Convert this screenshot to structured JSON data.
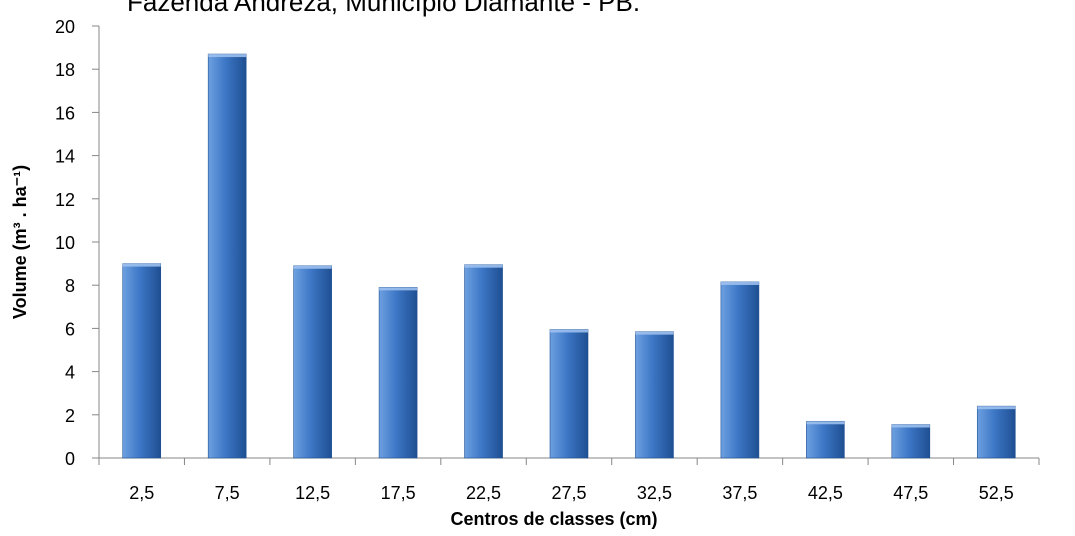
{
  "chart_data": {
    "type": "bar",
    "title": "Fazenda Andreza, Município Diamante - PB.",
    "xlabel": "Centros de classes (cm)",
    "ylabel": "Volume (m³ . ha⁻¹)",
    "categories": [
      "2,5",
      "7,5",
      "12,5",
      "17,5",
      "22,5",
      "27,5",
      "32,5",
      "37,5",
      "42,5",
      "47,5",
      "52,5"
    ],
    "values": [
      9.0,
      18.7,
      8.9,
      7.9,
      8.95,
      5.95,
      5.85,
      8.15,
      1.7,
      1.55,
      2.4
    ],
    "ylim": [
      0,
      20
    ],
    "yticks": [
      0,
      2,
      4,
      6,
      8,
      10,
      12,
      14,
      16,
      18,
      20
    ],
    "grid": false,
    "legend": "none",
    "colors": {
      "bar_light": "#6da0e0",
      "bar_mid": "#3d77c6",
      "bar_dark": "#1f4f92",
      "axis": "#878787",
      "text": "#000000"
    }
  }
}
